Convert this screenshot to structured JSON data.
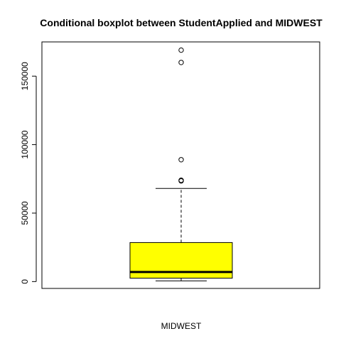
{
  "chart_data": {
    "type": "boxplot",
    "title": "Conditional boxplot between StudentApplied and MIDWEST",
    "xlabel": "MIDWEST",
    "ylabel": "",
    "ylim": [
      -5000,
      175000
    ],
    "y_ticks": [
      0,
      50000,
      100000,
      150000
    ],
    "y_tick_labels": [
      "0",
      "50000",
      "100000",
      "150000"
    ],
    "grid": false,
    "box_color": "#ffff00",
    "boxes": [
      {
        "name": "MIDWEST",
        "whisker_low": 500,
        "q1": 2500,
        "median": 7000,
        "q3": 28500,
        "whisker_high": 68000,
        "outliers": [
          74000,
          73500,
          89000,
          160000,
          169000
        ]
      }
    ]
  }
}
